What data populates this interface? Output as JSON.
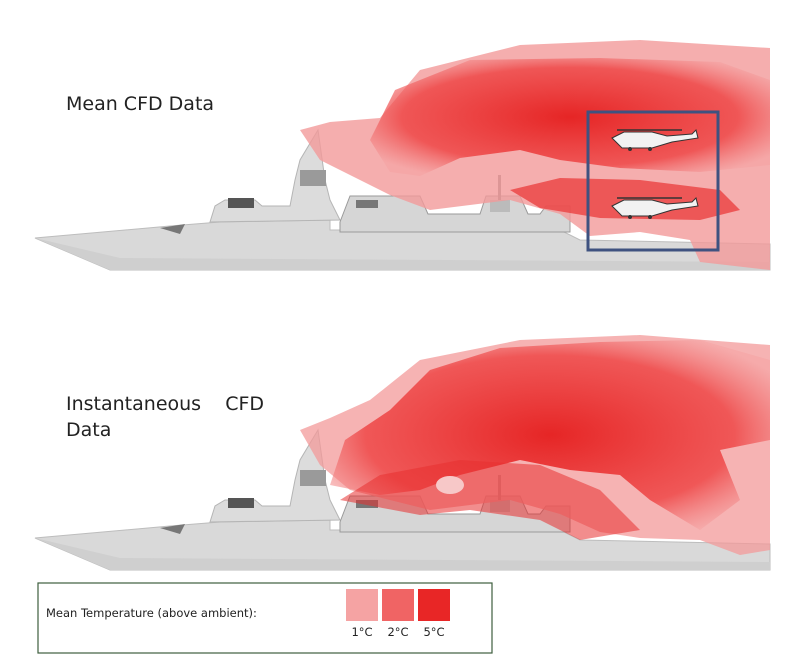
{
  "panels": [
    {
      "label_lines": [
        "Mean CFD Data"
      ]
    },
    {
      "label_lines": [
        "Instantaneous    CFD",
        "Data"
      ]
    }
  ],
  "legend": {
    "title": "Mean Temperature (above ambient):",
    "items": [
      {
        "label": "1°C",
        "color": "#f5a3a3"
      },
      {
        "label": "2°C",
        "color": "#f06464"
      },
      {
        "label": "5°C",
        "color": "#e82626"
      }
    ]
  }
}
